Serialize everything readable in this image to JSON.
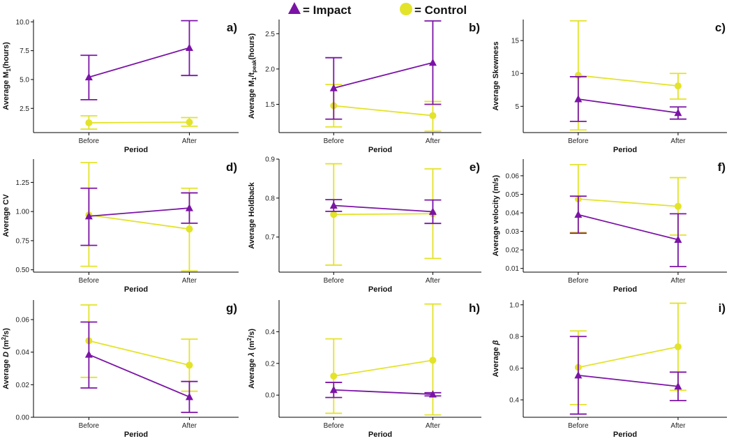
{
  "legend": {
    "impact_label": "= Impact",
    "control_label": "= Control",
    "impact_color": "#7b14a6",
    "control_color": "#e3e32a"
  },
  "chart_data": [
    {
      "panel": "a)",
      "type": "line",
      "ylabel_main": "Average M",
      "ylabel_sub": "1",
      "ylabel_tail": "(hours)",
      "xlabel": "Period",
      "categories": [
        "Before",
        "After"
      ],
      "ylim": [
        0.4,
        10.2
      ],
      "yticks": [
        2.5,
        5.0,
        7.5,
        10.0
      ],
      "ytick_labels": [
        "2.5",
        "5.0",
        "7.5",
        "10.0"
      ],
      "series": [
        {
          "name": "Impact",
          "values": [
            5.2,
            7.75
          ],
          "err_low": [
            3.25,
            5.35
          ],
          "err_high": [
            7.1,
            10.1
          ]
        },
        {
          "name": "Control",
          "values": [
            1.25,
            1.3
          ],
          "err_low": [
            0.7,
            0.95
          ],
          "err_high": [
            1.85,
            1.7
          ]
        }
      ]
    },
    {
      "panel": "b)",
      "type": "line",
      "ylabel_main": "Average M",
      "ylabel_sub": "1",
      "ylabel_tail": "/t",
      "ylabel_sub2": "peak",
      "ylabel_end": "(hours)",
      "xlabel": "Period",
      "categories": [
        "Before",
        "After"
      ],
      "ylim": [
        1.1,
        2.7
      ],
      "yticks": [
        1.5,
        2.0,
        2.5
      ],
      "ytick_labels": [
        "1.5",
        "2.0",
        "2.5"
      ],
      "series": [
        {
          "name": "Impact",
          "values": [
            1.73,
            2.09
          ],
          "err_low": [
            1.29,
            1.5
          ],
          "err_high": [
            2.16,
            2.68
          ]
        },
        {
          "name": "Control",
          "values": [
            1.48,
            1.34
          ],
          "err_low": [
            1.18,
            1.12
          ],
          "err_high": [
            1.78,
            1.54
          ]
        }
      ]
    },
    {
      "panel": "c)",
      "type": "line",
      "ylabel_main": "Average Skewness",
      "xlabel": "Period",
      "categories": [
        "Before",
        "After"
      ],
      "ylim": [
        1,
        18.2
      ],
      "yticks": [
        5,
        10,
        15
      ],
      "ytick_labels": [
        "5",
        "10",
        "15"
      ],
      "series": [
        {
          "name": "Impact",
          "values": [
            6.1,
            4.0
          ],
          "err_low": [
            2.7,
            3.05
          ],
          "err_high": [
            9.5,
            4.9
          ]
        },
        {
          "name": "Control",
          "values": [
            9.7,
            8.1
          ],
          "err_low": [
            1.4,
            6.1
          ],
          "err_high": [
            18.0,
            10.0
          ]
        }
      ]
    },
    {
      "panel": "d)",
      "type": "line",
      "ylabel_main": "Average CV",
      "xlabel": "Period",
      "categories": [
        "Before",
        "After"
      ],
      "ylim": [
        0.48,
        1.45
      ],
      "yticks": [
        0.5,
        0.75,
        1.0,
        1.25
      ],
      "ytick_labels": [
        "0.50",
        "0.75",
        "1.00",
        "1.25"
      ],
      "series": [
        {
          "name": "Impact",
          "values": [
            0.96,
            1.03
          ],
          "err_low": [
            0.71,
            0.9
          ],
          "err_high": [
            1.2,
            1.16
          ]
        },
        {
          "name": "Control",
          "values": [
            0.97,
            0.85
          ],
          "err_low": [
            0.53,
            0.49
          ],
          "err_high": [
            1.42,
            1.2
          ]
        }
      ]
    },
    {
      "panel": "e)",
      "type": "line",
      "ylabel_main": "Average Holdback",
      "xlabel": "Period",
      "categories": [
        "Before",
        "After"
      ],
      "ylim": [
        0.61,
        0.9
      ],
      "yticks": [
        0.7,
        0.8,
        0.9
      ],
      "ytick_labels": [
        "0.7",
        "0.8",
        "0.9"
      ],
      "series": [
        {
          "name": "Impact",
          "values": [
            0.781,
            0.765
          ],
          "err_low": [
            0.766,
            0.735
          ],
          "err_high": [
            0.796,
            0.795
          ]
        },
        {
          "name": "Control",
          "values": [
            0.758,
            0.76
          ],
          "err_low": [
            0.628,
            0.645
          ],
          "err_high": [
            0.888,
            0.875
          ]
        }
      ]
    },
    {
      "panel": "f)",
      "type": "line",
      "ylabel_main": "Average velocity (m/s)",
      "xlabel": "Period",
      "categories": [
        "Before",
        "After"
      ],
      "ylim": [
        0.008,
        0.069
      ],
      "yticks": [
        0.01,
        0.02,
        0.03,
        0.04,
        0.05,
        0.06
      ],
      "ytick_labels": [
        "0.01",
        "0.02",
        "0.03",
        "0.04",
        "0.05",
        "0.06"
      ],
      "series": [
        {
          "name": "Impact",
          "values": [
            0.039,
            0.0255
          ],
          "err_low": [
            0.029,
            0.011
          ],
          "err_high": [
            0.049,
            0.0395
          ]
        },
        {
          "name": "Control",
          "values": [
            0.0475,
            0.0435
          ],
          "err_low": [
            0.0295,
            0.028
          ],
          "err_high": [
            0.066,
            0.059
          ]
        }
      ]
    },
    {
      "panel": "g)",
      "type": "line",
      "ylabel_main": "Average ",
      "ylabel_ital": "D",
      "ylabel_tail": " (m",
      "ylabel_sup": "2",
      "ylabel_end": "/s)",
      "xlabel": "Period",
      "categories": [
        "Before",
        "After"
      ],
      "ylim": [
        0,
        0.072
      ],
      "yticks": [
        0.0,
        0.02,
        0.04,
        0.06
      ],
      "ytick_labels": [
        "0.00",
        "0.02",
        "0.04",
        "0.06"
      ],
      "series": [
        {
          "name": "Impact",
          "values": [
            0.0385,
            0.0125
          ],
          "err_low": [
            0.018,
            0.003
          ],
          "err_high": [
            0.0585,
            0.022
          ]
        },
        {
          "name": "Control",
          "values": [
            0.047,
            0.032
          ],
          "err_low": [
            0.0245,
            0.016
          ],
          "err_high": [
            0.069,
            0.048
          ]
        }
      ]
    },
    {
      "panel": "h)",
      "type": "line",
      "ylabel_main": "Average ",
      "ylabel_ital": "λ",
      "ylabel_tail": " (m",
      "ylabel_sup": "2",
      "ylabel_end": "/s)",
      "xlabel": "Period",
      "categories": [
        "Before",
        "After"
      ],
      "ylim": [
        -0.14,
        0.6
      ],
      "yticks": [
        0.0,
        0.2,
        0.4
      ],
      "ytick_labels": [
        "0.0",
        "0.2",
        "0.4"
      ],
      "series": [
        {
          "name": "Impact",
          "values": [
            0.033,
            0.005
          ],
          "err_low": [
            -0.015,
            -0.005
          ],
          "err_high": [
            0.08,
            0.015
          ]
        },
        {
          "name": "Control",
          "values": [
            0.12,
            0.22
          ],
          "err_low": [
            -0.115,
            -0.125
          ],
          "err_high": [
            0.355,
            0.575
          ]
        }
      ]
    },
    {
      "panel": "i)",
      "type": "line",
      "ylabel_main": "Average ",
      "ylabel_ital": "β",
      "xlabel": "Period",
      "categories": [
        "Before",
        "After"
      ],
      "ylim": [
        0.29,
        1.03
      ],
      "yticks": [
        0.4,
        0.6,
        0.8,
        1.0
      ],
      "ytick_labels": [
        "0.4",
        "0.6",
        "0.8",
        "1.0"
      ],
      "series": [
        {
          "name": "Impact",
          "values": [
            0.555,
            0.485
          ],
          "err_low": [
            0.31,
            0.395
          ],
          "err_high": [
            0.8,
            0.575
          ]
        },
        {
          "name": "Control",
          "values": [
            0.605,
            0.735
          ],
          "err_low": [
            0.37,
            0.46
          ],
          "err_high": [
            0.835,
            1.01
          ]
        }
      ]
    }
  ]
}
